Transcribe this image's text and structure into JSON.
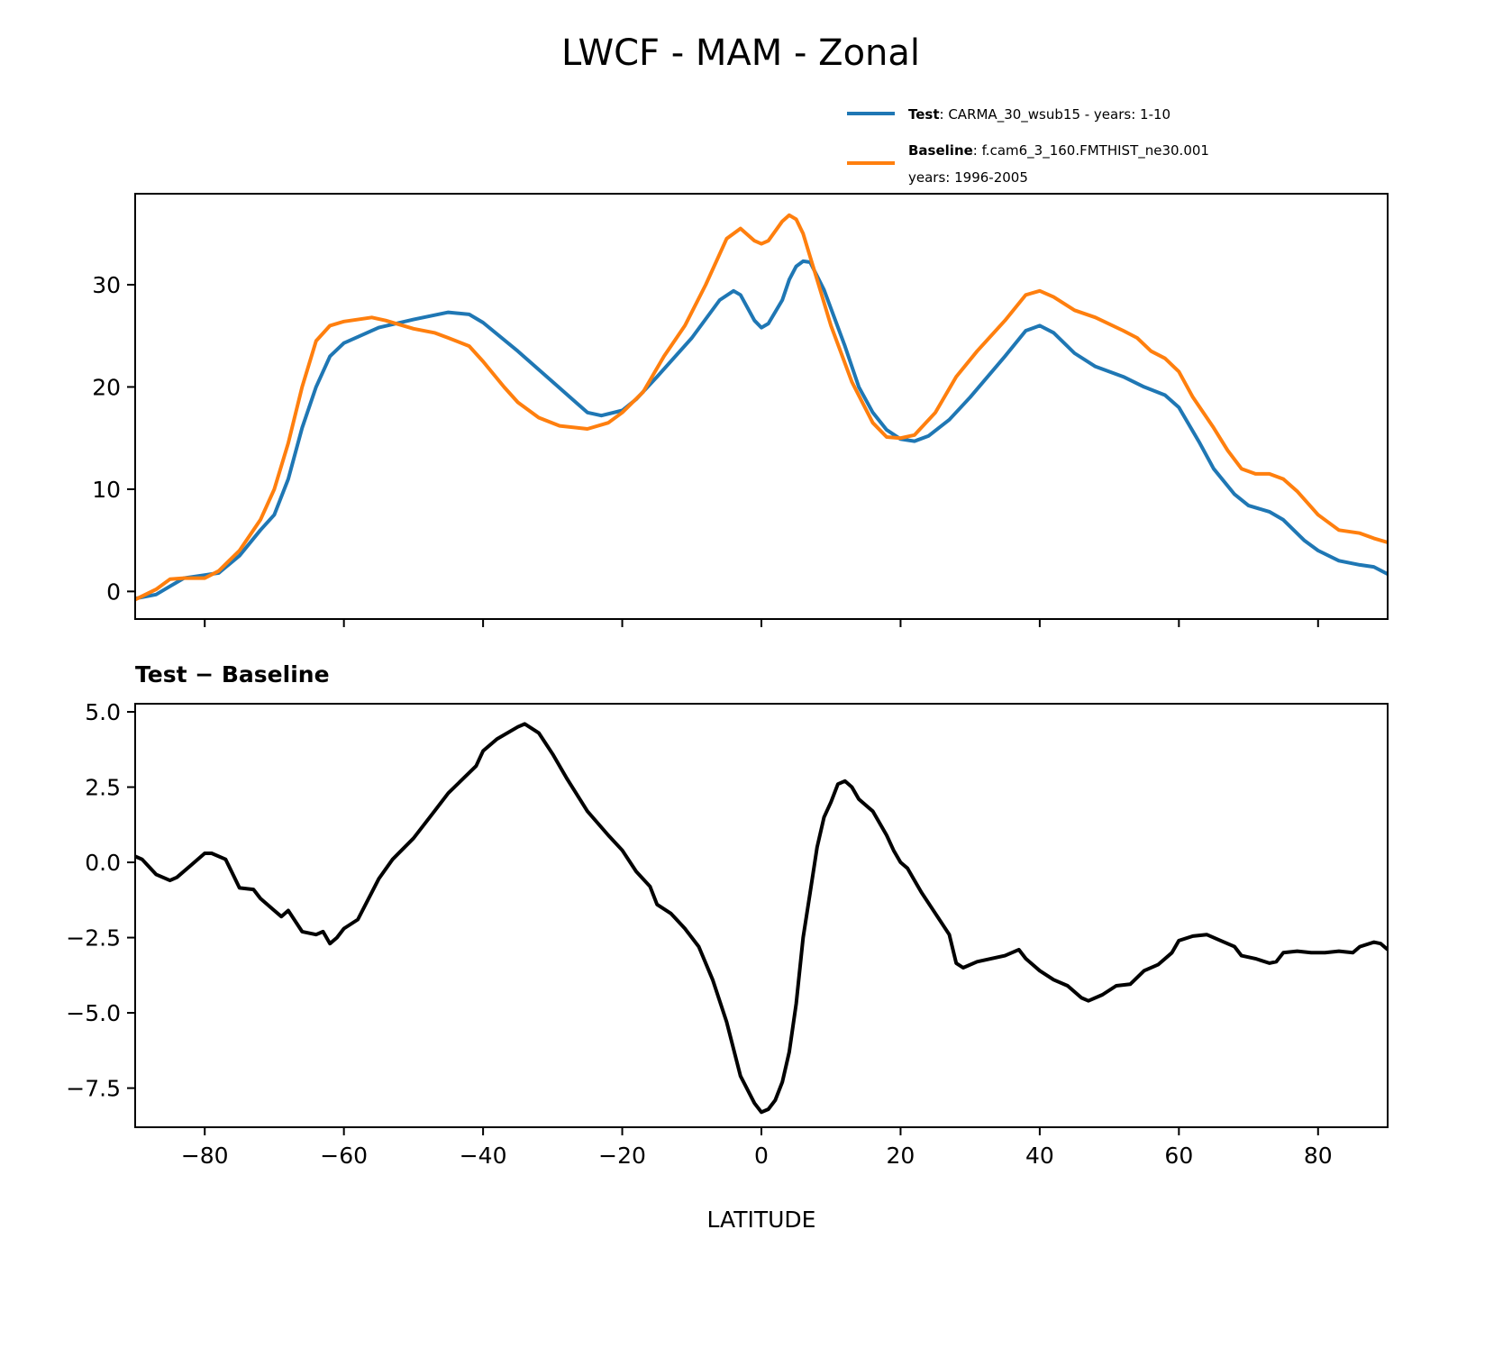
{
  "chart_data": [
    {
      "type": "line",
      "title": "LWCF - MAM - Zonal",
      "xlim": [
        -90,
        90
      ],
      "ylim": [
        -2.7,
        38.9
      ],
      "yticks": [
        0,
        10,
        20,
        30
      ],
      "ytick_labels": [
        "0",
        "10",
        "20",
        "30"
      ],
      "xticks": [
        -80,
        -60,
        -40,
        -20,
        0,
        20,
        40,
        60,
        80
      ],
      "legend_placement": "above-right",
      "legend": [
        {
          "bold": "Test",
          "text": ": CARMA_30_wsub15 - years: 1-10",
          "text2": ""
        },
        {
          "bold": "Baseline",
          "text": ": f.cam6_3_160.FMTHIST_ne30.001",
          "text2": "years: 1996-2005"
        }
      ],
      "series": [
        {
          "name": "Test",
          "color": "#1f77b4",
          "x": [
            -90,
            -87,
            -85,
            -83,
            -80,
            -78,
            -75,
            -72,
            -70,
            -68,
            -66,
            -64,
            -62,
            -60,
            -55,
            -50,
            -45,
            -42,
            -40,
            -35,
            -30,
            -27,
            -25,
            -23,
            -20,
            -18,
            -15,
            -10,
            -6,
            -4,
            -3,
            -1,
            0,
            1,
            3,
            4,
            5,
            6,
            7,
            9,
            12,
            14,
            16,
            18,
            20,
            22,
            24,
            27,
            30,
            35,
            38,
            40,
            42,
            45,
            48,
            52,
            55,
            58,
            60,
            63,
            65,
            68,
            70,
            73,
            75,
            78,
            80,
            83,
            86,
            88,
            90
          ],
          "y": [
            -0.7,
            -0.3,
            0.5,
            1.3,
            1.6,
            1.8,
            3.5,
            6,
            7.5,
            11,
            16,
            20,
            23,
            24.3,
            25.8,
            26.6,
            27.3,
            27.1,
            26.3,
            23.5,
            20.5,
            18.7,
            17.5,
            17.2,
            17.7,
            18.8,
            21,
            24.8,
            28.5,
            29.4,
            29,
            26.5,
            25.8,
            26.2,
            28.5,
            30.5,
            31.8,
            32.3,
            32.2,
            29.5,
            24,
            20,
            17.5,
            15.8,
            14.9,
            14.7,
            15.2,
            16.8,
            19,
            23,
            25.5,
            26,
            25.3,
            23.3,
            22,
            21,
            20,
            19.2,
            18,
            14.5,
            12,
            9.5,
            8.4,
            7.8,
            7,
            5,
            4,
            3,
            2.6,
            2.4,
            1.7
          ]
        },
        {
          "name": "Baseline",
          "color": "#ff7f0e",
          "x": [
            -90,
            -87,
            -85,
            -83,
            -80,
            -78,
            -75,
            -72,
            -70,
            -68,
            -66,
            -64,
            -62,
            -60,
            -56,
            -54,
            -50,
            -47,
            -45,
            -42,
            -40,
            -37,
            -35,
            -32,
            -29,
            -25,
            -22,
            -20,
            -17,
            -14,
            -11,
            -8,
            -5,
            -3,
            -1,
            0,
            1,
            3,
            4,
            5,
            6,
            8,
            10,
            13,
            16,
            18,
            20,
            22,
            25,
            28,
            31,
            35,
            38,
            40,
            42,
            45,
            48,
            52,
            54,
            56,
            58,
            60,
            62,
            65,
            67,
            69,
            71,
            73,
            75,
            77,
            80,
            83,
            86,
            88,
            90
          ],
          "y": [
            -0.8,
            0.2,
            1.2,
            1.3,
            1.3,
            2,
            4,
            7,
            10,
            14.5,
            20,
            24.5,
            26,
            26.4,
            26.8,
            26.5,
            25.7,
            25.3,
            24.8,
            24,
            22.5,
            20,
            18.5,
            17,
            16.2,
            15.9,
            16.5,
            17.5,
            19.5,
            23,
            26,
            30,
            34.5,
            35.5,
            34.3,
            34,
            34.3,
            36.2,
            36.8,
            36.4,
            35,
            30.5,
            26,
            20.5,
            16.5,
            15.1,
            15,
            15.3,
            17.5,
            21,
            23.5,
            26.5,
            29,
            29.4,
            28.8,
            27.5,
            26.8,
            25.5,
            24.8,
            23.5,
            22.8,
            21.5,
            19,
            16,
            13.8,
            12,
            11.5,
            11.5,
            11,
            9.8,
            7.5,
            6,
            5.7,
            5.2,
            4.8
          ]
        }
      ]
    },
    {
      "type": "line",
      "title": "Test − Baseline",
      "xlabel": "LATITUDE",
      "xlim": [
        -90,
        90
      ],
      "ylim": [
        -8.8,
        5.27
      ],
      "yticks": [
        5.0,
        2.5,
        0.0,
        -2.5,
        -5.0,
        -7.5
      ],
      "ytick_labels": [
        "5.0",
        "2.5",
        "0.0",
        "−2.5",
        "−5.0",
        "−7.5"
      ],
      "xticks": [
        -80,
        -60,
        -40,
        -20,
        0,
        20,
        40,
        60,
        80
      ],
      "xtick_labels": [
        "−80",
        "−60",
        "−40",
        "−20",
        "0",
        "20",
        "40",
        "60",
        "80"
      ],
      "series": [
        {
          "name": "Test - Baseline",
          "color": "#000000",
          "x": [
            -90,
            -89,
            -87,
            -85,
            -84,
            -82,
            -80,
            -79,
            -77,
            -75,
            -73,
            -72,
            -70,
            -69,
            -68,
            -66,
            -64,
            -63,
            -62,
            -61,
            -60,
            -58,
            -55,
            -53,
            -50,
            -47,
            -45,
            -41,
            -40,
            -38,
            -35,
            -34,
            -32,
            -30,
            -28,
            -25,
            -22,
            -20,
            -18,
            -16,
            -15,
            -13,
            -11,
            -9,
            -7,
            -5,
            -3,
            -1,
            0,
            1,
            2,
            3,
            4,
            5,
            6,
            7,
            8,
            9,
            10,
            11,
            12,
            13,
            14,
            16,
            18,
            19,
            20,
            21,
            23,
            25,
            27,
            28,
            29,
            31,
            33,
            35,
            37,
            38,
            40,
            42,
            44,
            46,
            47,
            49,
            51,
            53,
            55,
            57,
            59,
            60,
            62,
            64,
            66,
            68,
            69,
            71,
            73,
            74,
            75,
            77,
            79,
            81,
            83,
            85,
            86,
            88,
            89,
            90
          ],
          "y": [
            0.2,
            0.1,
            -0.4,
            -0.6,
            -0.5,
            -0.1,
            0.3,
            0.3,
            0.1,
            -0.85,
            -0.9,
            -1.2,
            -1.6,
            -1.8,
            -1.6,
            -2.3,
            -2.4,
            -2.3,
            -2.7,
            -2.5,
            -2.2,
            -1.9,
            -0.55,
            0.1,
            0.8,
            1.7,
            2.3,
            3.2,
            3.7,
            4.1,
            4.5,
            4.6,
            4.3,
            3.6,
            2.8,
            1.7,
            0.9,
            0.4,
            -0.3,
            -0.8,
            -1.4,
            -1.7,
            -2.2,
            -2.8,
            -3.9,
            -5.3,
            -7.1,
            -8.0,
            -8.3,
            -8.2,
            -7.9,
            -7.3,
            -6.3,
            -4.7,
            -2.5,
            -1.0,
            0.5,
            1.5,
            2.0,
            2.6,
            2.7,
            2.5,
            2.1,
            1.7,
            0.9,
            0.4,
            0,
            -0.2,
            -1.0,
            -1.7,
            -2.4,
            -3.35,
            -3.5,
            -3.3,
            -3.2,
            -3.1,
            -2.9,
            -3.2,
            -3.6,
            -3.9,
            -4.1,
            -4.5,
            -4.6,
            -4.4,
            -4.1,
            -4.05,
            -3.6,
            -3.4,
            -3.0,
            -2.6,
            -2.45,
            -2.4,
            -2.6,
            -2.8,
            -3.1,
            -3.2,
            -3.35,
            -3.3,
            -3.0,
            -2.95,
            -3.0,
            -3.0,
            -2.95,
            -3.0,
            -2.8,
            -2.65,
            -2.7,
            -2.9
          ]
        }
      ]
    }
  ]
}
